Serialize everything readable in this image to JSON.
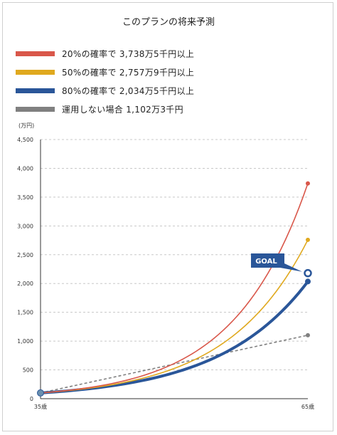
{
  "chart_data": {
    "type": "line",
    "title": "このプランの将来予測",
    "unit_label": "(万円)",
    "x": [
      "35歳",
      "65歳"
    ],
    "xlim": [
      35,
      65
    ],
    "ylim": [
      0,
      4500
    ],
    "y_ticks": [
      0,
      500,
      1000,
      1500,
      2000,
      2500,
      3000,
      3500,
      4000,
      4500
    ],
    "y_tick_labels": [
      "0",
      "500",
      "1,000",
      "1,500",
      "2,000",
      "2,500",
      "3,000",
      "3,500",
      "4,000",
      "4,500"
    ],
    "grid": true,
    "legend_position": "top-left",
    "start_value": 100,
    "series": [
      {
        "name": "20%の確率で 3,738万5千円以上",
        "start": 100,
        "end": 3738.5,
        "color": "#d9574a",
        "style": "curve"
      },
      {
        "name": "50%の確率で 2,757万9千円以上",
        "start": 100,
        "end": 2757.9,
        "color": "#e0a91f",
        "style": "curve"
      },
      {
        "name": "80%の確率で 2,034万5千円以上",
        "start": 100,
        "end": 2034.5,
        "color": "#2a5699",
        "style": "curve-bold"
      },
      {
        "name": "運用しない場合 1,102万3千円",
        "start": 100,
        "end": 1102.3,
        "color": "#808080",
        "style": "dashed"
      }
    ],
    "goal": {
      "label": "GOAL",
      "value": 2180,
      "color": "#2a5699"
    }
  }
}
